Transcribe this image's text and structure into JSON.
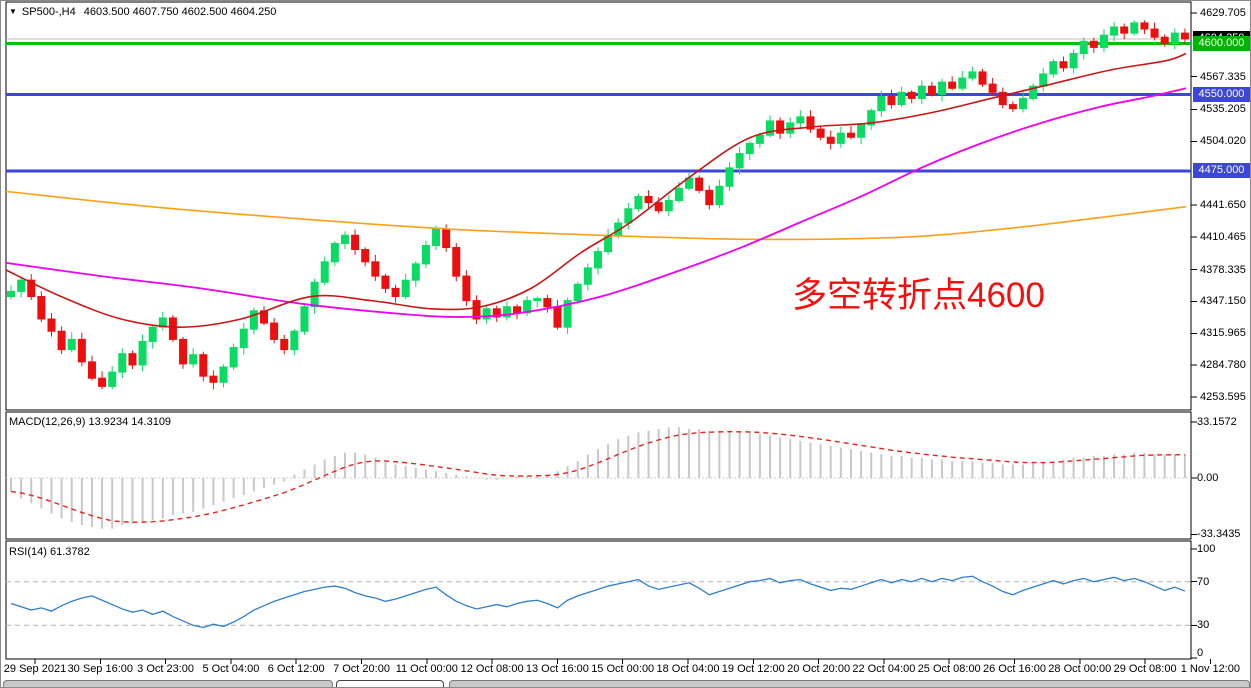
{
  "header": {
    "dropdown_icon": "▼",
    "symbol_period": "SP500-,H4",
    "ohlc": "4603.500 4607.750 4602.500 4604.250"
  },
  "macd_label": {
    "text": "MACD(12,26,9) 13.9234 14.3109"
  },
  "rsi_label": {
    "text": "RSI(14) 61.3782"
  },
  "annotation": {
    "text": "多空转折点4600",
    "color": "#f60d0d"
  },
  "colors": {
    "candle_up": "#0bdb62",
    "candle_down": "#ec0f0f",
    "ma_magenta": "#f000f0",
    "ma_red": "#c81616",
    "ma_orange": "#ffa018",
    "level_green": "#00c400",
    "level_blue": "#3c46d8",
    "price_line_silver": "#c0c0c0",
    "macd_hist": "#c8c8c8",
    "macd_signal": "#e82222",
    "rsi_line": "#2e7fcb"
  },
  "chart_data": {
    "type": "candlestick",
    "symbol": "SP500-",
    "timeframe": "H4",
    "title": "SP500-,H4 4603.500 4607.750 4602.500 4604.250",
    "last_ohlc": {
      "open": 4603.5,
      "high": 4607.75,
      "low": 4602.5,
      "close": 4604.25
    },
    "price_axis": {
      "ylim": [
        4253.595,
        4629.705
      ],
      "ticks": [
        4629.705,
        4567.335,
        4535.205,
        4504.02,
        4441.65,
        4410.465,
        4378.335,
        4347.15,
        4315.965,
        4284.78,
        4253.595
      ]
    },
    "levels": [
      {
        "price": 4604.25,
        "label": "4604.250",
        "line": "#c0c0c0",
        "badge_bg": "#000000",
        "width": 1
      },
      {
        "price": 4600.0,
        "label": "4600.000",
        "line": "#00c400",
        "badge_bg": "#00b400",
        "width": 3
      },
      {
        "price": 4550.0,
        "label": "4550.000",
        "line": "#3c46d8",
        "badge_bg": "#3c46d8",
        "width": 3
      },
      {
        "price": 4475.0,
        "label": "4475.000",
        "line": "#3c46d8",
        "badge_bg": "#3c46d8",
        "width": 3
      }
    ],
    "closes": [
      4357,
      4368,
      4352,
      4330,
      4318,
      4300,
      4310,
      4288,
      4272,
      4264,
      4278,
      4296,
      4285,
      4308,
      4322,
      4331,
      4310,
      4286,
      4295,
      4274,
      4268,
      4283,
      4302,
      4320,
      4338,
      4326,
      4310,
      4300,
      4318,
      4342,
      4366,
      4386,
      4404,
      4412,
      4398,
      4386,
      4372,
      4360,
      4352,
      4368,
      4384,
      4402,
      4418,
      4400,
      4372,
      4348,
      4330,
      4340,
      4332,
      4342,
      4336,
      4348,
      4350,
      4342,
      4322,
      4348,
      4364,
      4380,
      4396,
      4412,
      4424,
      4438,
      4450,
      4444,
      4436,
      4446,
      4458,
      4468,
      4456,
      4442,
      4460,
      4478,
      4492,
      4502,
      4510,
      4524,
      4512,
      4522,
      4528,
      4516,
      4508,
      4502,
      4512,
      4508,
      4520,
      4534,
      4548,
      4540,
      4552,
      4546,
      4558,
      4550,
      4562,
      4556,
      4566,
      4572,
      4560,
      4552,
      4540,
      4536,
      4546,
      4558,
      4570,
      4582,
      4576,
      4590,
      4602,
      4596,
      4608,
      4616,
      4610,
      4620,
      4614,
      4606,
      4600,
      4610,
      4604.25
    ],
    "moving_averages": {
      "magenta": [
        [
          5,
          4385
        ],
        [
          100,
          4372
        ],
        [
          200,
          4360
        ],
        [
          300,
          4345
        ],
        [
          400,
          4335
        ],
        [
          460,
          4332
        ],
        [
          520,
          4336
        ],
        [
          600,
          4352
        ],
        [
          680,
          4378
        ],
        [
          740,
          4400
        ],
        [
          800,
          4425
        ],
        [
          860,
          4450
        ],
        [
          920,
          4478
        ],
        [
          980,
          4502
        ],
        [
          1040,
          4522
        ],
        [
          1100,
          4538
        ],
        [
          1150,
          4548
        ],
        [
          1185,
          4556
        ]
      ],
      "red": [
        [
          5,
          4378
        ],
        [
          60,
          4352
        ],
        [
          120,
          4330
        ],
        [
          180,
          4322
        ],
        [
          240,
          4330
        ],
        [
          310,
          4352
        ],
        [
          370,
          4348
        ],
        [
          430,
          4340
        ],
        [
          480,
          4342
        ],
        [
          530,
          4360
        ],
        [
          580,
          4395
        ],
        [
          630,
          4425
        ],
        [
          690,
          4470
        ],
        [
          750,
          4508
        ],
        [
          810,
          4518
        ],
        [
          870,
          4522
        ],
        [
          930,
          4532
        ],
        [
          990,
          4546
        ],
        [
          1050,
          4560
        ],
        [
          1110,
          4574
        ],
        [
          1165,
          4583
        ],
        [
          1185,
          4590
        ]
      ],
      "orange": [
        [
          5,
          4455
        ],
        [
          150,
          4440
        ],
        [
          300,
          4428
        ],
        [
          450,
          4418
        ],
        [
          600,
          4412
        ],
        [
          750,
          4408
        ],
        [
          900,
          4410
        ],
        [
          1000,
          4418
        ],
        [
          1080,
          4427
        ],
        [
          1185,
          4440
        ]
      ]
    },
    "macd": {
      "params": "12,26,9",
      "current_main": 13.9234,
      "current_signal": 14.3109,
      "axis_values": [
        33.1572,
        0,
        -33.3435
      ],
      "axis_labels": [
        "33.1572",
        "0.00",
        "-33.3435"
      ],
      "hist": [
        -8,
        -12,
        -15,
        -18,
        -21,
        -24,
        -26,
        -28,
        -29,
        -30,
        -30,
        -28,
        -27,
        -26,
        -25,
        -24,
        -22,
        -21,
        -20,
        -18,
        -16,
        -14,
        -12,
        -10,
        -8,
        -6,
        -4,
        -2,
        2,
        5,
        8,
        11,
        13,
        15,
        15,
        14,
        12,
        10,
        8,
        7,
        6,
        5,
        4,
        3,
        2,
        1,
        0,
        -1,
        -1,
        0,
        1,
        1,
        2,
        2,
        4,
        7,
        10,
        14,
        17,
        20,
        23,
        25,
        27,
        28,
        29,
        30,
        30,
        29,
        29,
        28,
        28,
        28,
        27,
        27,
        26,
        25,
        24,
        23,
        22,
        21,
        20,
        19,
        18,
        17,
        16,
        15,
        14,
        13,
        13,
        12,
        12,
        11,
        11,
        10,
        10,
        10,
        9,
        9,
        8,
        8,
        8,
        9,
        9,
        10,
        11,
        12,
        12,
        13,
        13,
        14,
        14,
        15,
        15,
        14,
        14,
        14,
        14
      ]
    },
    "rsi": {
      "period": 14,
      "current": 61.3782,
      "axis_values": [
        100,
        70,
        30,
        0
      ],
      "axis_labels": [
        "100",
        "70",
        "30",
        "0"
      ],
      "dashed_levels": [
        70,
        30
      ],
      "values": [
        50,
        47,
        44,
        46,
        43,
        48,
        52,
        55,
        57,
        53,
        49,
        45,
        42,
        44,
        40,
        43,
        38,
        34,
        30,
        28,
        31,
        29,
        33,
        38,
        44,
        48,
        52,
        55,
        58,
        61,
        63,
        65,
        66,
        64,
        60,
        57,
        55,
        52,
        54,
        57,
        60,
        63,
        65,
        58,
        52,
        48,
        45,
        47,
        49,
        47,
        50,
        52,
        53,
        50,
        46,
        53,
        57,
        60,
        63,
        66,
        68,
        70,
        72,
        66,
        63,
        65,
        67,
        69,
        64,
        58,
        61,
        64,
        67,
        70,
        71,
        73,
        69,
        71,
        72,
        68,
        65,
        62,
        64,
        63,
        66,
        69,
        72,
        69,
        72,
        70,
        73,
        70,
        73,
        71,
        74,
        75,
        70,
        66,
        61,
        58,
        62,
        65,
        68,
        71,
        68,
        71,
        73,
        70,
        72,
        74,
        71,
        73,
        70,
        66,
        62,
        65,
        61.4
      ]
    },
    "time_labels": [
      "29 Sep 2021",
      "30 Sep 16:00",
      "3 Oct 23:00",
      "5 Oct 04:00",
      "6 Oct 12:00",
      "7 Oct 20:00",
      "11 Oct 00:00",
      "12 Oct 08:00",
      "13 Oct 16:00",
      "15 Oct 00:00",
      "18 Oct 04:00",
      "19 Oct 12:00",
      "20 Oct 20:00",
      "22 Oct 04:00",
      "25 Oct 08:00",
      "26 Oct 16:00",
      "28 Oct 00:00",
      "29 Oct 08:00",
      "1 Nov 12:00"
    ],
    "annotation": {
      "text": "多空转折点4600"
    }
  }
}
